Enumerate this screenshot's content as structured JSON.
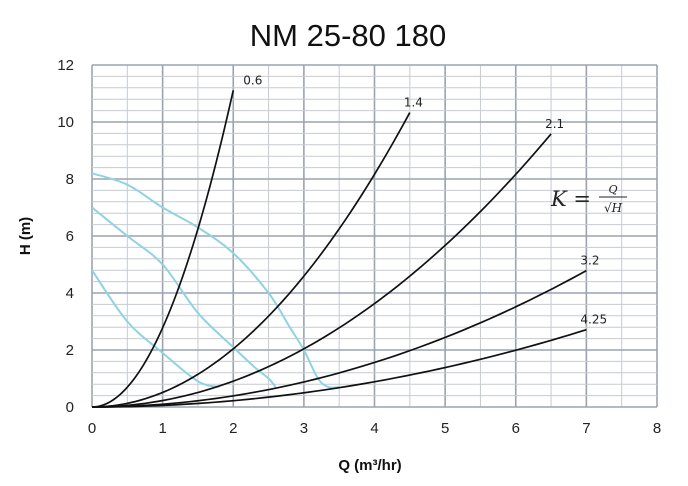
{
  "chart_data": {
    "type": "line",
    "title": "NM 25-80 180",
    "xlabel": "Q (m³/hr)",
    "ylabel": "H (m)",
    "xlim": [
      0,
      8
    ],
    "ylim": [
      0,
      12
    ],
    "xticks": [
      "0",
      "1",
      "2",
      "3",
      "4",
      "5",
      "6",
      "7",
      "8"
    ],
    "yticks": [
      "0",
      "2",
      "4",
      "6",
      "8",
      "10",
      "12"
    ],
    "grid": true,
    "formula": {
      "lhs": "K =",
      "numerator": "Q",
      "denominator": "√H"
    },
    "system_curves": [
      {
        "label": "0.6",
        "K": 0.6,
        "q_max": 2.0
      },
      {
        "label": "1.4",
        "K": 1.4,
        "q_max": 4.5
      },
      {
        "label": "2.1",
        "K": 2.1,
        "q_max": 6.5
      },
      {
        "label": "3.2",
        "K": 3.2,
        "q_max": 7.0
      },
      {
        "label": "4.25",
        "K": 4.25,
        "q_max": 7.0
      }
    ],
    "pump_curves": [
      {
        "points": [
          [
            0,
            8.2
          ],
          [
            0.5,
            7.8
          ],
          [
            1,
            7.0
          ],
          [
            1.5,
            6.3
          ],
          [
            2,
            5.4
          ],
          [
            2.5,
            4.0
          ],
          [
            2.8,
            2.8
          ],
          [
            3,
            2.0
          ],
          [
            3.2,
            1.0
          ],
          [
            3.35,
            0.7
          ],
          [
            3.5,
            0.7
          ]
        ]
      },
      {
        "points": [
          [
            0,
            7.0
          ],
          [
            0.5,
            6.0
          ],
          [
            1,
            5.0
          ],
          [
            1.5,
            3.3
          ],
          [
            2,
            2.1
          ],
          [
            2.3,
            1.4
          ],
          [
            2.5,
            1.0
          ],
          [
            2.6,
            0.7
          ]
        ]
      },
      {
        "points": [
          [
            0,
            4.8
          ],
          [
            0.5,
            3.0
          ],
          [
            1,
            1.9
          ],
          [
            1.5,
            0.9
          ],
          [
            1.8,
            0.7
          ]
        ]
      }
    ],
    "colors": {
      "system": "#111111",
      "pump": "#8fd3e3",
      "grid_major": "#9aa3b0",
      "grid_minor": "#c5cbd3"
    }
  }
}
